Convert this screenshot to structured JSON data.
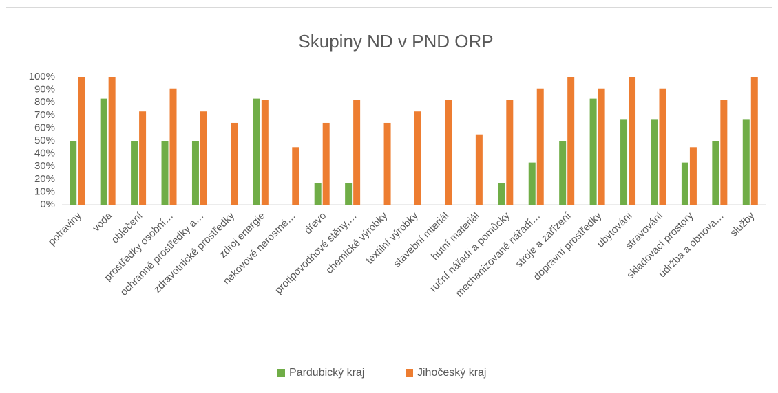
{
  "chart_data": {
    "type": "bar",
    "title": "Skupiny ND v PND ORP",
    "categories": [
      "potraviny",
      "voda",
      "oblečení",
      "prostředky osobní…",
      "ochranné prostředky a…",
      "zdravotnické prostředky",
      "zdroj energie",
      "nekovové nerostné…",
      "dřevo",
      "protipovodňové stěny,…",
      "chemické výrobky",
      "textilní výrobky",
      "stavební mteriál",
      "hutní materiál",
      "ruční nářadí a pomůcky",
      "mechanizované nářadí…",
      "stroje a zařízení",
      "dopravní prostředky",
      "ubytování",
      "stravování",
      "skladovací prostory",
      "údržba a obnova…",
      "služby"
    ],
    "series": [
      {
        "name": "Pardubický kraj",
        "color": "#70ad47",
        "values": [
          50,
          83,
          50,
          50,
          50,
          0,
          83,
          0,
          17,
          17,
          0,
          0,
          0,
          0,
          17,
          33,
          50,
          83,
          67,
          67,
          33,
          50,
          67
        ]
      },
      {
        "name": "Jihočeský kraj",
        "color": "#ed7d31",
        "values": [
          100,
          100,
          73,
          91,
          73,
          64,
          82,
          45,
          64,
          82,
          64,
          73,
          82,
          55,
          82,
          91,
          100,
          91,
          100,
          91,
          45,
          82,
          100
        ]
      }
    ],
    "ylim": [
      0,
      100
    ],
    "yticks": [
      {
        "value": 0,
        "label": "0%"
      },
      {
        "value": 10,
        "label": "10%"
      },
      {
        "value": 20,
        "label": "20%"
      },
      {
        "value": 30,
        "label": "30%"
      },
      {
        "value": 40,
        "label": "40%"
      },
      {
        "value": 50,
        "label": "50%"
      },
      {
        "value": 60,
        "label": "60%"
      },
      {
        "value": 70,
        "label": "70%"
      },
      {
        "value": 80,
        "label": "80%"
      },
      {
        "value": 90,
        "label": "90%"
      },
      {
        "value": 100,
        "label": "100%"
      }
    ],
    "grid": false,
    "legend": "bottom"
  }
}
